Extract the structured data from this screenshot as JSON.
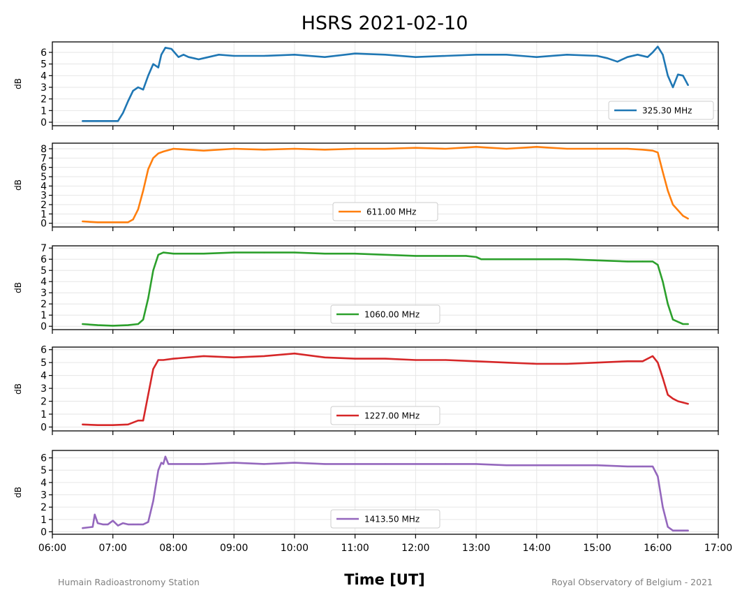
{
  "figure": {
    "title": "HSRS 2021-02-10",
    "xlabel": "Time [UT]",
    "footer_left": "Humain Radioastronomy Station",
    "footer_right": "Royal Observatory of Belgium - 2021"
  },
  "chart_data": [
    {
      "type": "line",
      "ylabel": "dB",
      "xlim": [
        "06:00",
        "17:00"
      ],
      "ylim": [
        -0.3,
        6.9
      ],
      "yticks": [
        0,
        1,
        2,
        3,
        4,
        5,
        6
      ],
      "legend_position": "lower-right",
      "color": "#1f77b4",
      "series": [
        {
          "name": "325.30 MHz",
          "x": [
            "06:30",
            "06:45",
            "07:05",
            "07:10",
            "07:15",
            "07:20",
            "07:25",
            "07:30",
            "07:35",
            "07:40",
            "07:45",
            "07:48",
            "07:52",
            "07:58",
            "08:05",
            "08:10",
            "08:15",
            "08:20",
            "08:25",
            "08:30",
            "08:45",
            "09:00",
            "09:30",
            "10:00",
            "10:30",
            "11:00",
            "11:30",
            "12:00",
            "12:30",
            "13:00",
            "13:30",
            "14:00",
            "14:30",
            "15:00",
            "15:10",
            "15:20",
            "15:30",
            "15:40",
            "15:50",
            "15:55",
            "16:00",
            "16:05",
            "16:10",
            "16:15",
            "16:20",
            "16:25",
            "16:30"
          ],
          "y": [
            0.1,
            0.1,
            0.1,
            0.8,
            1.8,
            2.7,
            3.0,
            2.8,
            4.0,
            5.0,
            4.7,
            5.8,
            6.4,
            6.3,
            5.6,
            5.8,
            5.6,
            5.5,
            5.4,
            5.5,
            5.8,
            5.7,
            5.7,
            5.8,
            5.6,
            5.9,
            5.8,
            5.6,
            5.7,
            5.8,
            5.8,
            5.6,
            5.8,
            5.7,
            5.5,
            5.2,
            5.6,
            5.8,
            5.6,
            6.0,
            6.5,
            5.8,
            4.0,
            3.0,
            4.1,
            4.0,
            3.2
          ]
        }
      ]
    },
    {
      "type": "line",
      "ylabel": "dB",
      "xlim": [
        "06:00",
        "17:00"
      ],
      "ylim": [
        -0.4,
        8.6
      ],
      "yticks": [
        0,
        1,
        2,
        3,
        4,
        5,
        6,
        7,
        8
      ],
      "legend_position": "lower-center",
      "color": "#ff7f0e",
      "series": [
        {
          "name": "611.00 MHz",
          "x": [
            "06:30",
            "06:45",
            "07:00",
            "07:15",
            "07:20",
            "07:25",
            "07:30",
            "07:35",
            "07:40",
            "07:45",
            "07:50",
            "08:00",
            "08:15",
            "08:30",
            "09:00",
            "09:30",
            "10:00",
            "10:30",
            "11:00",
            "11:30",
            "12:00",
            "12:30",
            "13:00",
            "13:30",
            "14:00",
            "14:30",
            "15:00",
            "15:30",
            "15:45",
            "15:55",
            "16:00",
            "16:05",
            "16:10",
            "16:15",
            "16:20",
            "16:25",
            "16:30"
          ],
          "y": [
            0.2,
            0.1,
            0.1,
            0.1,
            0.4,
            1.5,
            3.5,
            5.8,
            7.0,
            7.5,
            7.7,
            8.0,
            7.9,
            7.8,
            8.0,
            7.9,
            8.0,
            7.9,
            8.0,
            8.0,
            8.1,
            8.0,
            8.2,
            8.0,
            8.2,
            8.0,
            8.0,
            8.0,
            7.9,
            7.8,
            7.6,
            5.5,
            3.5,
            2.0,
            1.4,
            0.8,
            0.5
          ]
        }
      ]
    },
    {
      "type": "line",
      "ylabel": "dB",
      "xlim": [
        "06:00",
        "17:00"
      ],
      "ylim": [
        -0.3,
        7.2
      ],
      "yticks": [
        0,
        1,
        2,
        3,
        4,
        5,
        6,
        7
      ],
      "legend_position": "lower-center",
      "color": "#2ca02c",
      "series": [
        {
          "name": "1060.00 MHz",
          "x": [
            "06:30",
            "06:45",
            "07:00",
            "07:15",
            "07:25",
            "07:30",
            "07:35",
            "07:40",
            "07:45",
            "07:50",
            "08:00",
            "08:30",
            "09:00",
            "09:30",
            "10:00",
            "10:30",
            "11:00",
            "11:30",
            "12:00",
            "12:30",
            "12:50",
            "13:00",
            "13:05",
            "13:30",
            "14:00",
            "14:30",
            "15:00",
            "15:30",
            "15:45",
            "15:55",
            "16:00",
            "16:05",
            "16:10",
            "16:15",
            "16:20",
            "16:25",
            "16:30"
          ],
          "y": [
            0.2,
            0.1,
            0.05,
            0.1,
            0.2,
            0.6,
            2.5,
            5.0,
            6.4,
            6.6,
            6.5,
            6.5,
            6.6,
            6.6,
            6.6,
            6.5,
            6.5,
            6.4,
            6.3,
            6.3,
            6.3,
            6.2,
            6.0,
            6.0,
            6.0,
            6.0,
            5.9,
            5.8,
            5.8,
            5.8,
            5.5,
            4.0,
            2.0,
            0.6,
            0.4,
            0.2,
            0.2
          ]
        }
      ]
    },
    {
      "type": "line",
      "ylabel": "dB",
      "xlim": [
        "06:00",
        "17:00"
      ],
      "ylim": [
        -0.3,
        6.2
      ],
      "yticks": [
        0,
        1,
        2,
        3,
        4,
        5,
        6
      ],
      "legend_position": "lower-center",
      "color": "#d62728",
      "series": [
        {
          "name": "1227.00 MHz",
          "x": [
            "06:30",
            "06:45",
            "07:00",
            "07:15",
            "07:25",
            "07:30",
            "07:35",
            "07:40",
            "07:45",
            "07:50",
            "08:00",
            "08:30",
            "09:00",
            "09:30",
            "10:00",
            "10:30",
            "11:00",
            "11:30",
            "12:00",
            "12:30",
            "13:00",
            "13:30",
            "14:00",
            "14:30",
            "15:00",
            "15:30",
            "15:45",
            "15:55",
            "16:00",
            "16:05",
            "16:10",
            "16:15",
            "16:20",
            "16:25",
            "16:30"
          ],
          "y": [
            0.2,
            0.15,
            0.15,
            0.2,
            0.5,
            0.5,
            2.5,
            4.5,
            5.2,
            5.2,
            5.3,
            5.5,
            5.4,
            5.5,
            5.7,
            5.4,
            5.3,
            5.3,
            5.2,
            5.2,
            5.1,
            5.0,
            4.9,
            4.9,
            5.0,
            5.1,
            5.1,
            5.5,
            5.0,
            3.8,
            2.5,
            2.2,
            2.0,
            1.9,
            1.8
          ]
        }
      ]
    },
    {
      "type": "line",
      "ylabel": "dB",
      "xlim": [
        "06:00",
        "17:00"
      ],
      "ylim": [
        -0.2,
        6.6
      ],
      "yticks": [
        0,
        1,
        2,
        3,
        4,
        5,
        6
      ],
      "legend_position": "lower-center",
      "color": "#9467bd",
      "series": [
        {
          "name": "1413.50 MHz",
          "x": [
            "06:30",
            "06:40",
            "06:42",
            "06:45",
            "06:50",
            "06:55",
            "07:00",
            "07:05",
            "07:10",
            "07:15",
            "07:20",
            "07:25",
            "07:30",
            "07:35",
            "07:40",
            "07:45",
            "07:48",
            "07:50",
            "07:52",
            "07:55",
            "08:00",
            "08:30",
            "09:00",
            "09:30",
            "10:00",
            "10:30",
            "11:00",
            "11:30",
            "12:00",
            "12:30",
            "13:00",
            "13:30",
            "14:00",
            "14:30",
            "15:00",
            "15:30",
            "15:45",
            "15:55",
            "16:00",
            "16:05",
            "16:10",
            "16:15",
            "16:20",
            "16:25",
            "16:30"
          ],
          "y": [
            0.3,
            0.4,
            1.4,
            0.7,
            0.6,
            0.6,
            0.9,
            0.5,
            0.7,
            0.6,
            0.6,
            0.6,
            0.6,
            0.8,
            2.5,
            5.0,
            5.6,
            5.5,
            6.1,
            5.5,
            5.5,
            5.5,
            5.6,
            5.5,
            5.6,
            5.5,
            5.5,
            5.5,
            5.5,
            5.5,
            5.5,
            5.4,
            5.4,
            5.4,
            5.4,
            5.3,
            5.3,
            5.3,
            4.5,
            2.0,
            0.4,
            0.1,
            0.1,
            0.1,
            0.1
          ]
        }
      ]
    }
  ],
  "x_axis": {
    "ticks": [
      "06:00",
      "07:00",
      "08:00",
      "09:00",
      "10:00",
      "11:00",
      "12:00",
      "13:00",
      "14:00",
      "15:00",
      "16:00",
      "17:00"
    ]
  }
}
